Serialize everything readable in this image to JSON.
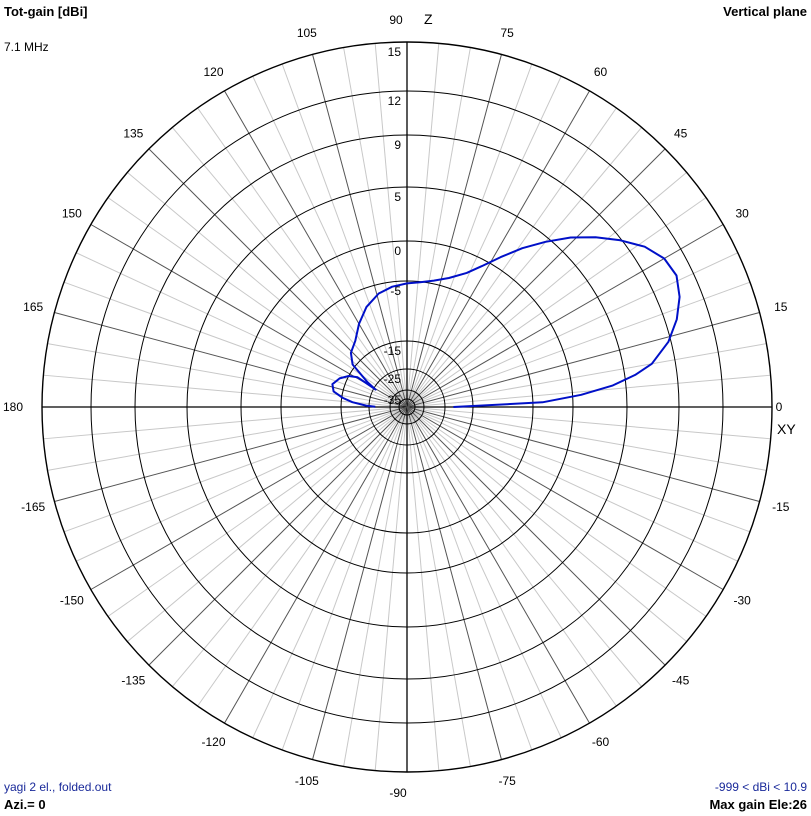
{
  "header": {
    "left_title": "Tot-gain [dBi]",
    "right_title": "Vertical plane",
    "frequency": "7.1 MHz"
  },
  "footer": {
    "model_name": "yagi 2 el., folded.out",
    "gain_range": "-999 < dBi < 10.9",
    "azimuth": "Azi.= 0",
    "max_gain": "Max gain Ele:26"
  },
  "axis_labels": {
    "z": "Z",
    "xy": "XY"
  },
  "colors": {
    "pattern": "#0010c8",
    "grid_major": "#000000",
    "grid_minor": "#c8c8c8"
  },
  "chart_data": {
    "type": "polar",
    "radial_unit": "dBi",
    "ring_labels": [
      "15",
      "12",
      "9",
      "5",
      "0",
      "-5",
      "-15",
      "-25",
      "-35"
    ],
    "angle_labels": [
      "0",
      "15",
      "30",
      "45",
      "60",
      "75",
      "90",
      "105",
      "120",
      "135",
      "150",
      "165",
      "180",
      "-165",
      "-150",
      "-135",
      "-120",
      "-105",
      "-90",
      "-75",
      "-60",
      "-45",
      "-30",
      "-15"
    ],
    "series": [
      {
        "points": [
          {
            "angle": 0,
            "gain": -22
          },
          {
            "angle": 2,
            "gain": -3.8
          },
          {
            "angle": 4,
            "gain": 0.8
          },
          {
            "angle": 6,
            "gain": 3.8
          },
          {
            "angle": 8,
            "gain": 5.8
          },
          {
            "angle": 10,
            "gain": 7.2
          },
          {
            "angle": 14,
            "gain": 8.8
          },
          {
            "angle": 18,
            "gain": 9.8
          },
          {
            "angle": 22,
            "gain": 10.5
          },
          {
            "angle": 26,
            "gain": 10.9
          },
          {
            "angle": 30,
            "gain": 10.7
          },
          {
            "angle": 34,
            "gain": 10.0
          },
          {
            "angle": 38,
            "gain": 8.9
          },
          {
            "angle": 42,
            "gain": 7.6
          },
          {
            "angle": 46,
            "gain": 6.2
          },
          {
            "angle": 50,
            "gain": 4.6
          },
          {
            "angle": 54,
            "gain": 2.8
          },
          {
            "angle": 58,
            "gain": 1.0
          },
          {
            "angle": 62,
            "gain": -0.8
          },
          {
            "angle": 66,
            "gain": -2.4
          },
          {
            "angle": 72,
            "gain": -3.8
          },
          {
            "angle": 78,
            "gain": -4.6
          },
          {
            "angle": 84,
            "gain": -5.1
          },
          {
            "angle": 90,
            "gain": -5.4
          },
          {
            "angle": 97,
            "gain": -5.8
          },
          {
            "angle": 104,
            "gain": -6.5
          },
          {
            "angle": 112,
            "gain": -8.0
          },
          {
            "angle": 120,
            "gain": -10.0
          },
          {
            "angle": 128,
            "gain": -12.0
          },
          {
            "angle": 136,
            "gain": -13.0
          },
          {
            "angle": 142,
            "gain": -14.5
          },
          {
            "angle": 148,
            "gain": -22.0
          },
          {
            "angle": 151,
            "gain": -26.0
          },
          {
            "angle": 149,
            "gain": -18.0
          },
          {
            "angle": 152,
            "gain": -15.0
          },
          {
            "angle": 157,
            "gain": -13.8
          },
          {
            "angle": 163,
            "gain": -13.0
          },
          {
            "angle": 168,
            "gain": -13.5
          },
          {
            "angle": 172,
            "gain": -15.5
          },
          {
            "angle": 175,
            "gain": -19.0
          },
          {
            "angle": 178,
            "gain": -24.0
          },
          {
            "angle": 179.5,
            "gain": -28.0
          }
        ]
      }
    ]
  }
}
